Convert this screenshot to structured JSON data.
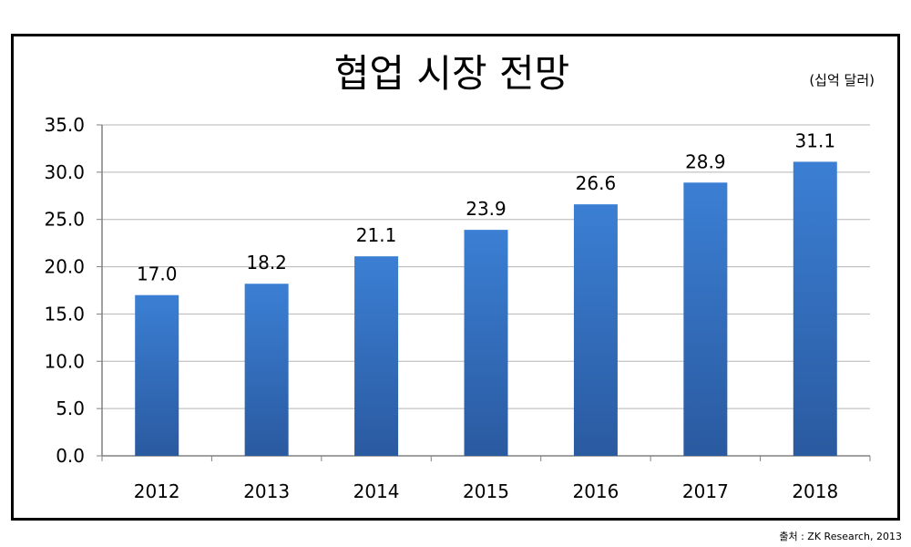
{
  "chart_data": {
    "type": "bar",
    "title": "협업 시장 전망",
    "unit": "(십억 달러)",
    "categories": [
      "2012",
      "2013",
      "2014",
      "2015",
      "2016",
      "2017",
      "2018"
    ],
    "values": [
      17.0,
      18.2,
      21.1,
      23.9,
      26.6,
      28.9,
      31.1
    ],
    "data_labels": [
      "17.0",
      "18.2",
      "21.1",
      "23.9",
      "26.6",
      "28.9",
      "31.1"
    ],
    "ylim": [
      0,
      35
    ],
    "yticks": [
      "0.0",
      "5.0",
      "10.0",
      "15.0",
      "20.0",
      "25.0",
      "30.0",
      "35.0"
    ],
    "grid": true,
    "bar_color_top": "#3b7fd4",
    "bar_color_bottom": "#2a5aa0"
  },
  "source": "출처 : ZK Research, 2013"
}
